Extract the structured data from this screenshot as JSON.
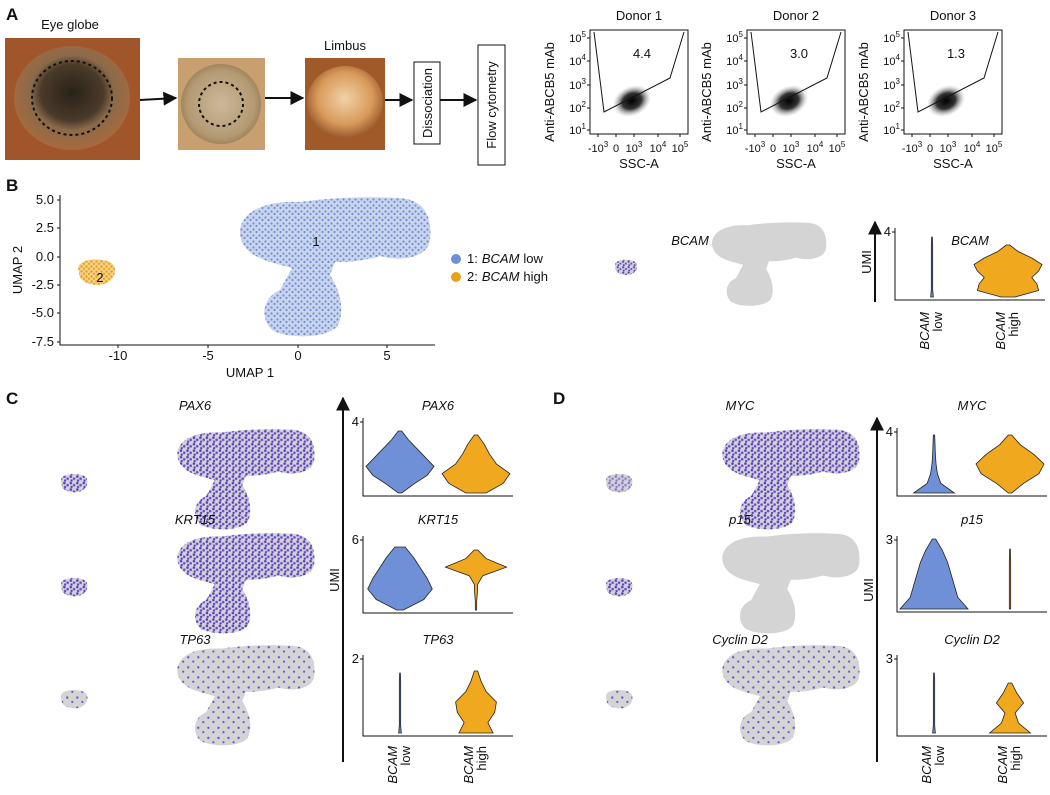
{
  "panel_labels": [
    "A",
    "B",
    "C",
    "D"
  ],
  "panel_a": {
    "photo_labels": [
      "Eye globe",
      "Limbus"
    ],
    "boxes": [
      "Dissociation",
      "Flow cytometry"
    ],
    "flow": {
      "y_label": "Anti-ABCB5 mAb",
      "x_label": "SSC-A",
      "yticks": [
        {
          "base": "10",
          "exp": "5"
        },
        {
          "base": "10",
          "exp": "4"
        },
        {
          "base": "10",
          "exp": "3"
        },
        {
          "base": "10",
          "exp": "2"
        },
        {
          "base": "10",
          "exp": "1"
        }
      ],
      "xticks": [
        {
          "base": "-10",
          "exp": "3"
        },
        {
          "base": "0"
        },
        {
          "base": "10",
          "exp": "3"
        },
        {
          "base": "10",
          "exp": "4"
        },
        {
          "base": "10",
          "exp": "5"
        }
      ],
      "donors": [
        {
          "name": "Donor 1",
          "gate": "4.4"
        },
        {
          "name": "Donor 2",
          "gate": "3.0"
        },
        {
          "name": "Donor 3",
          "gate": "1.3"
        }
      ]
    }
  },
  "panel_b": {
    "umap": {
      "y_label": "UMAP 2",
      "x_label": "UMAP 1",
      "yticks": [
        "5.0",
        "2.5",
        "0.0",
        "-2.5",
        "-5.0",
        "-7.5"
      ],
      "xticks": [
        "-10",
        "-5",
        "0",
        "5"
      ],
      "cluster_labels": [
        "1",
        "2"
      ],
      "legend": [
        {
          "id": "1:",
          "gene": "BCAM",
          "level": "low"
        },
        {
          "id": "2:",
          "gene": "BCAM",
          "level": "high"
        }
      ]
    },
    "genes": [
      "BCAM"
    ],
    "axis": "UMI",
    "maxes": [
      "4"
    ],
    "groups": [
      {
        "gene": "BCAM",
        "level": "low"
      },
      {
        "gene": "BCAM",
        "level": "high"
      }
    ]
  },
  "panel_c": {
    "genes": [
      "PAX6",
      "KRT15",
      "TP63"
    ],
    "axis": "UMI",
    "maxes": [
      "4",
      "6",
      "2"
    ],
    "groups": [
      {
        "gene": "BCAM",
        "level": "low"
      },
      {
        "gene": "BCAM",
        "level": "high"
      }
    ]
  },
  "panel_d": {
    "genes": [
      "MYC",
      "p15",
      "Cyclin D2"
    ],
    "axis": "UMI",
    "maxes": [
      "4",
      "3",
      "3"
    ],
    "groups": [
      {
        "gene": "BCAM",
        "level": "low"
      },
      {
        "gene": "BCAM",
        "level": "high"
      }
    ]
  }
}
